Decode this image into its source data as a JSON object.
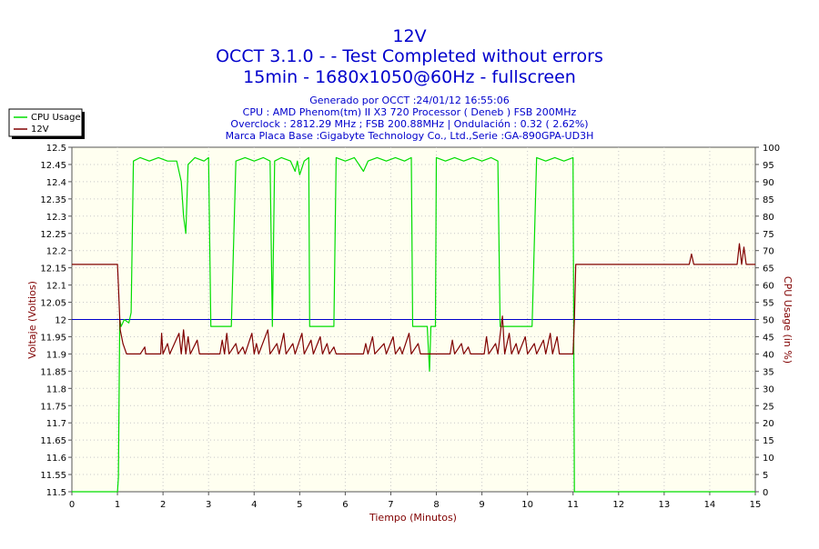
{
  "chart_data": {
    "type": "line",
    "title": "12V",
    "subtitle_lines": [
      "OCCT 3.1.0 -  - Test Completed without errors",
      "15min - 1680x1050@60Hz - fullscreen"
    ],
    "info_lines": [
      "Generado por OCCT :24/01/12 16:55:06",
      "CPU : AMD Phenom(tm) II X3 720 Processor ( Deneb ) FSB 200MHz",
      "Overclock : 2812.29 MHz ; FSB 200.88MHz | Ondulación : 0.32 ( 2.62%)",
      "Marca Placa Base :Gigabyte Technology Co., Ltd.,Serie :GA-890GPA-UD3H"
    ],
    "xlabel": "Tiempo (Minutos)",
    "ylabel": "Voltaje (Voltios)",
    "y2label": "CPU Usage (in %)",
    "xlim": [
      0,
      15
    ],
    "ylim": [
      11.5,
      12.5
    ],
    "y2lim": [
      0,
      100
    ],
    "grid": true,
    "legend_position": "top-left",
    "x_ticks": [
      "0",
      "1",
      "2",
      "3",
      "4",
      "5",
      "6",
      "7",
      "8",
      "9",
      "10",
      "11",
      "12",
      "13",
      "14",
      "15"
    ],
    "y_ticks": [
      "11.5",
      "11.55",
      "11.6",
      "11.65",
      "11.7",
      "11.75",
      "11.8",
      "11.85",
      "11.9",
      "11.95",
      "12",
      "12.05",
      "12.1",
      "12.15",
      "12.2",
      "12.25",
      "12.3",
      "12.35",
      "12.4",
      "12.45",
      "12.5"
    ],
    "y2_ticks": [
      "0",
      "5",
      "10",
      "15",
      "20",
      "25",
      "30",
      "35",
      "40",
      "45",
      "50",
      "55",
      "60",
      "65",
      "70",
      "75",
      "80",
      "85",
      "90",
      "95",
      "100"
    ],
    "reference_line": {
      "axis": "left",
      "value": 12.0
    },
    "series": [
      {
        "name": "CPU Usage",
        "axis": "right",
        "color": "#00dd00",
        "points": [
          [
            0.0,
            0
          ],
          [
            1.0,
            0
          ],
          [
            1.02,
            4
          ],
          [
            1.05,
            50
          ],
          [
            1.08,
            48
          ],
          [
            1.15,
            50
          ],
          [
            1.25,
            49
          ],
          [
            1.3,
            52
          ],
          [
            1.35,
            96
          ],
          [
            1.5,
            97
          ],
          [
            1.7,
            96
          ],
          [
            1.9,
            97
          ],
          [
            2.1,
            96
          ],
          [
            2.3,
            96
          ],
          [
            2.4,
            90
          ],
          [
            2.45,
            80
          ],
          [
            2.5,
            75
          ],
          [
            2.55,
            95
          ],
          [
            2.7,
            97
          ],
          [
            2.9,
            96
          ],
          [
            3.0,
            97
          ],
          [
            3.05,
            48
          ],
          [
            3.3,
            48
          ],
          [
            3.5,
            48
          ],
          [
            3.6,
            96
          ],
          [
            3.8,
            97
          ],
          [
            4.0,
            96
          ],
          [
            4.2,
            97
          ],
          [
            4.35,
            96
          ],
          [
            4.4,
            48
          ],
          [
            4.45,
            96
          ],
          [
            4.6,
            97
          ],
          [
            4.8,
            96
          ],
          [
            4.9,
            93
          ],
          [
            4.95,
            96
          ],
          [
            5.0,
            92
          ],
          [
            5.1,
            96
          ],
          [
            5.2,
            97
          ],
          [
            5.22,
            48
          ],
          [
            5.4,
            48
          ],
          [
            5.6,
            48
          ],
          [
            5.75,
            48
          ],
          [
            5.8,
            97
          ],
          [
            6.0,
            96
          ],
          [
            6.2,
            97
          ],
          [
            6.4,
            93
          ],
          [
            6.5,
            96
          ],
          [
            6.7,
            97
          ],
          [
            6.9,
            96
          ],
          [
            7.1,
            97
          ],
          [
            7.3,
            96
          ],
          [
            7.45,
            97
          ],
          [
            7.48,
            48
          ],
          [
            7.7,
            48
          ],
          [
            7.8,
            48
          ],
          [
            7.85,
            35
          ],
          [
            7.88,
            48
          ],
          [
            7.98,
            48
          ],
          [
            8.0,
            97
          ],
          [
            8.2,
            96
          ],
          [
            8.4,
            97
          ],
          [
            8.6,
            96
          ],
          [
            8.8,
            97
          ],
          [
            9.0,
            96
          ],
          [
            9.2,
            97
          ],
          [
            9.35,
            96
          ],
          [
            9.4,
            48
          ],
          [
            9.6,
            48
          ],
          [
            9.8,
            48
          ],
          [
            10.1,
            48
          ],
          [
            10.2,
            97
          ],
          [
            10.4,
            96
          ],
          [
            10.6,
            97
          ],
          [
            10.8,
            96
          ],
          [
            11.0,
            97
          ],
          [
            11.03,
            0
          ],
          [
            15.0,
            0
          ]
        ]
      },
      {
        "name": "12V",
        "axis": "left",
        "color": "#800000",
        "points": [
          [
            0.0,
            12.16
          ],
          [
            1.0,
            12.16
          ],
          [
            1.02,
            12.1
          ],
          [
            1.06,
            11.97
          ],
          [
            1.12,
            11.93
          ],
          [
            1.2,
            11.9
          ],
          [
            1.5,
            11.9
          ],
          [
            1.6,
            11.92
          ],
          [
            1.62,
            11.9
          ],
          [
            1.95,
            11.9
          ],
          [
            1.97,
            11.96
          ],
          [
            2.0,
            11.9
          ],
          [
            2.1,
            11.93
          ],
          [
            2.15,
            11.9
          ],
          [
            2.35,
            11.96
          ],
          [
            2.4,
            11.9
          ],
          [
            2.45,
            11.97
          ],
          [
            2.5,
            11.9
          ],
          [
            2.55,
            11.95
          ],
          [
            2.6,
            11.9
          ],
          [
            2.75,
            11.94
          ],
          [
            2.8,
            11.9
          ],
          [
            3.25,
            11.9
          ],
          [
            3.3,
            11.94
          ],
          [
            3.35,
            11.9
          ],
          [
            3.4,
            11.96
          ],
          [
            3.45,
            11.9
          ],
          [
            3.6,
            11.93
          ],
          [
            3.65,
            11.9
          ],
          [
            3.75,
            11.92
          ],
          [
            3.8,
            11.9
          ],
          [
            3.95,
            11.96
          ],
          [
            4.0,
            11.9
          ],
          [
            4.05,
            11.93
          ],
          [
            4.1,
            11.9
          ],
          [
            4.3,
            11.97
          ],
          [
            4.35,
            11.9
          ],
          [
            4.5,
            11.93
          ],
          [
            4.55,
            11.9
          ],
          [
            4.65,
            11.96
          ],
          [
            4.7,
            11.9
          ],
          [
            4.85,
            11.93
          ],
          [
            4.9,
            11.9
          ],
          [
            5.05,
            11.96
          ],
          [
            5.1,
            11.9
          ],
          [
            5.25,
            11.94
          ],
          [
            5.3,
            11.9
          ],
          [
            5.45,
            11.95
          ],
          [
            5.5,
            11.9
          ],
          [
            5.6,
            11.93
          ],
          [
            5.65,
            11.9
          ],
          [
            5.75,
            11.92
          ],
          [
            5.8,
            11.9
          ],
          [
            6.4,
            11.9
          ],
          [
            6.45,
            11.93
          ],
          [
            6.5,
            11.9
          ],
          [
            6.6,
            11.95
          ],
          [
            6.65,
            11.9
          ],
          [
            6.85,
            11.93
          ],
          [
            6.9,
            11.9
          ],
          [
            7.05,
            11.95
          ],
          [
            7.1,
            11.9
          ],
          [
            7.2,
            11.92
          ],
          [
            7.25,
            11.9
          ],
          [
            7.4,
            11.96
          ],
          [
            7.45,
            11.9
          ],
          [
            7.6,
            11.93
          ],
          [
            7.65,
            11.9
          ],
          [
            8.3,
            11.9
          ],
          [
            8.35,
            11.94
          ],
          [
            8.4,
            11.9
          ],
          [
            8.55,
            11.93
          ],
          [
            8.6,
            11.9
          ],
          [
            8.7,
            11.92
          ],
          [
            8.75,
            11.9
          ],
          [
            9.05,
            11.9
          ],
          [
            9.1,
            11.95
          ],
          [
            9.15,
            11.9
          ],
          [
            9.3,
            11.93
          ],
          [
            9.35,
            11.9
          ],
          [
            9.45,
            12.01
          ],
          [
            9.5,
            11.9
          ],
          [
            9.6,
            11.96
          ],
          [
            9.65,
            11.9
          ],
          [
            9.75,
            11.93
          ],
          [
            9.8,
            11.9
          ],
          [
            9.95,
            11.95
          ],
          [
            10.0,
            11.9
          ],
          [
            10.15,
            11.93
          ],
          [
            10.2,
            11.9
          ],
          [
            10.35,
            11.94
          ],
          [
            10.4,
            11.9
          ],
          [
            10.5,
            11.96
          ],
          [
            10.55,
            11.9
          ],
          [
            10.65,
            11.95
          ],
          [
            10.7,
            11.9
          ],
          [
            11.0,
            11.9
          ],
          [
            11.03,
            12.0
          ],
          [
            11.06,
            12.16
          ],
          [
            13.55,
            12.16
          ],
          [
            13.6,
            12.19
          ],
          [
            13.65,
            12.16
          ],
          [
            14.6,
            12.16
          ],
          [
            14.65,
            12.22
          ],
          [
            14.7,
            12.16
          ],
          [
            14.75,
            12.21
          ],
          [
            14.8,
            12.16
          ],
          [
            15.0,
            12.16
          ]
        ]
      }
    ]
  }
}
